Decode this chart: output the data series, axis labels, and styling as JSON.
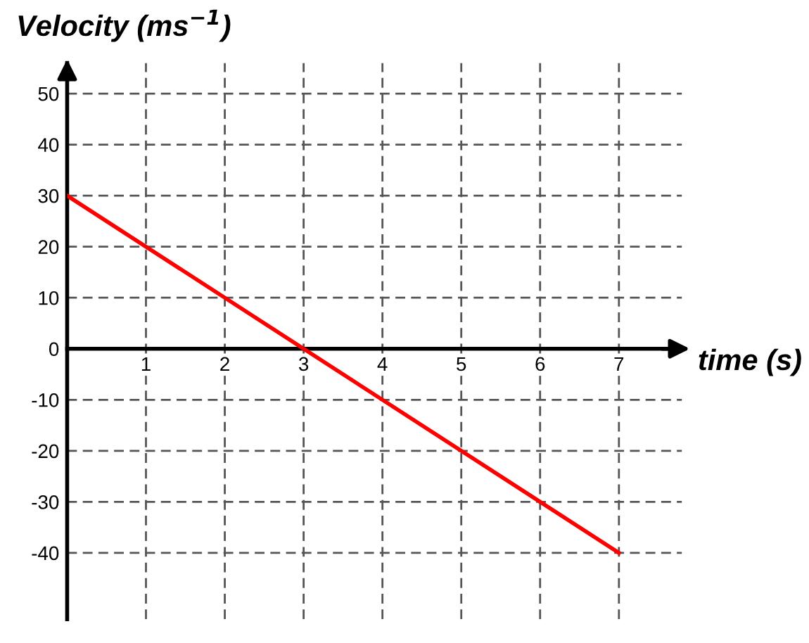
{
  "chart_data": {
    "type": "line",
    "xlabel": "time (s)",
    "ylabel": "Velocity (ms$^{−1}$)",
    "x": [
      0,
      7
    ],
    "series": [
      {
        "color": "#ff0000",
        "values": [
          30,
          -40
        ]
      }
    ],
    "xlim": [
      0,
      7.8
    ],
    "ylim": [
      -53,
      56
    ],
    "xticks": [
      1,
      2,
      3,
      4,
      5,
      6,
      7
    ],
    "yticks": [
      -40,
      -30,
      -20,
      -10,
      0,
      10,
      20,
      30,
      40,
      50
    ],
    "grid": true,
    "line_style": "solid",
    "marker": "none"
  }
}
